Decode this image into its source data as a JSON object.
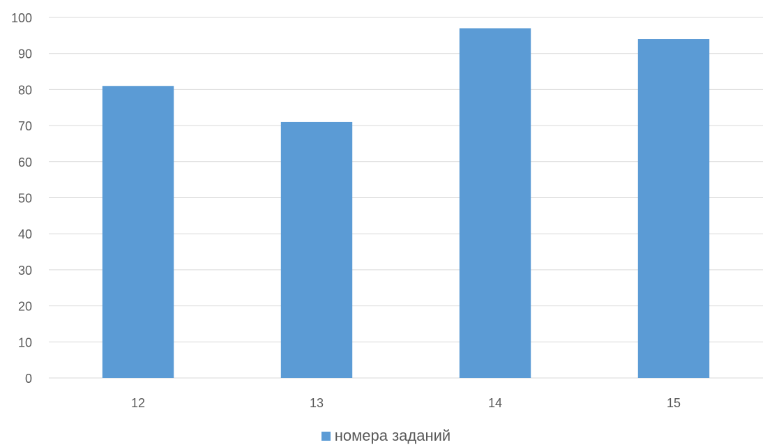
{
  "chart_data": {
    "type": "bar",
    "categories": [
      "12",
      "13",
      "14",
      "15"
    ],
    "series": [
      {
        "name": "номера заданий",
        "values": [
          81,
          71,
          97,
          94
        ]
      }
    ],
    "ylim": [
      0,
      100
    ],
    "yticks": [
      "0",
      "10",
      "20",
      "30",
      "40",
      "50",
      "60",
      "70",
      "80",
      "90",
      "100"
    ],
    "title": "",
    "xlabel": "",
    "ylabel": "",
    "grid": true,
    "legend_position": "bottom",
    "colors": {
      "bar": "#5b9bd5",
      "grid": "#d9d9d9",
      "text": "#595959"
    }
  }
}
